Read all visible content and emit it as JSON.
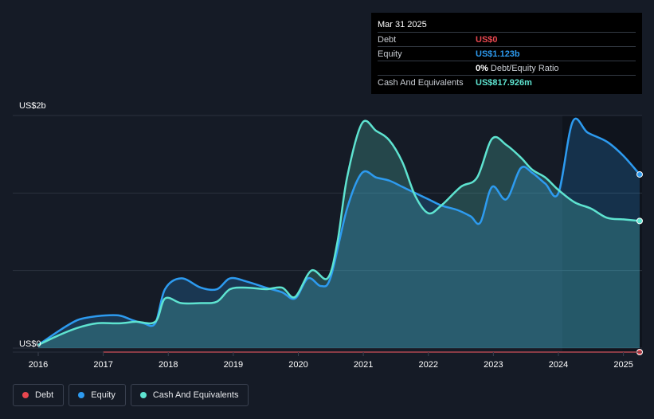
{
  "tooltip": {
    "date": "Mar 31 2025",
    "rows": [
      {
        "label": "Debt",
        "value": "US$0",
        "color": "#e8474f"
      },
      {
        "label": "Equity",
        "value": "US$1.123b",
        "color": "#2d9bf0"
      },
      {
        "label": "",
        "value": "0%",
        "note": "Debt/Equity Ratio",
        "color": "#ffffff"
      },
      {
        "label": "Cash And Equivalents",
        "value": "US$817.926m",
        "color": "#5ee3d0"
      }
    ]
  },
  "legend": [
    {
      "label": "Debt",
      "color": "#e8474f"
    },
    {
      "label": "Equity",
      "color": "#2d9bf0"
    },
    {
      "label": "Cash And Equivalents",
      "color": "#5ee3d0"
    }
  ],
  "chart_data": {
    "type": "area",
    "ylabel_top": "US$2b",
    "ylabel_bottom": "US$0",
    "ylim": [
      0,
      1.5
    ],
    "xlim": [
      2016,
      2025.25
    ],
    "x_tick_labels": [
      "2016",
      "2017",
      "2018",
      "2019",
      "2020",
      "2021",
      "2022",
      "2023",
      "2024",
      "2025"
    ],
    "grid": true,
    "series": [
      {
        "name": "Equity",
        "color": "#2d9bf0",
        "points": [
          [
            2016.0,
            0.02
          ],
          [
            2016.35,
            0.12
          ],
          [
            2016.6,
            0.18
          ],
          [
            2016.8,
            0.2
          ],
          [
            2017.0,
            0.21
          ],
          [
            2017.25,
            0.21
          ],
          [
            2017.45,
            0.18
          ],
          [
            2017.62,
            0.16
          ],
          [
            2017.8,
            0.16
          ],
          [
            2017.95,
            0.38
          ],
          [
            2018.2,
            0.45
          ],
          [
            2018.5,
            0.39
          ],
          [
            2018.75,
            0.38
          ],
          [
            2018.95,
            0.45
          ],
          [
            2019.2,
            0.43
          ],
          [
            2019.5,
            0.39
          ],
          [
            2019.75,
            0.36
          ],
          [
            2019.95,
            0.32
          ],
          [
            2020.15,
            0.45
          ],
          [
            2020.35,
            0.4
          ],
          [
            2020.5,
            0.46
          ],
          [
            2020.75,
            0.9
          ],
          [
            2020.98,
            1.13
          ],
          [
            2021.2,
            1.1
          ],
          [
            2021.4,
            1.08
          ],
          [
            2021.6,
            1.04
          ],
          [
            2021.8,
            1.0
          ],
          [
            2022.0,
            0.96
          ],
          [
            2022.2,
            0.92
          ],
          [
            2022.45,
            0.89
          ],
          [
            2022.65,
            0.85
          ],
          [
            2022.8,
            0.81
          ],
          [
            2022.98,
            1.04
          ],
          [
            2023.2,
            0.96
          ],
          [
            2023.42,
            1.16
          ],
          [
            2023.6,
            1.13
          ],
          [
            2023.8,
            1.06
          ],
          [
            2024.0,
            1.0
          ],
          [
            2024.22,
            1.46
          ],
          [
            2024.45,
            1.39
          ],
          [
            2024.75,
            1.33
          ],
          [
            2025.0,
            1.24
          ],
          [
            2025.25,
            1.12
          ]
        ]
      },
      {
        "name": "Cash And Equivalents",
        "color": "#5ee3d0",
        "points": [
          [
            2016.0,
            0.02
          ],
          [
            2016.3,
            0.08
          ],
          [
            2016.6,
            0.13
          ],
          [
            2016.9,
            0.16
          ],
          [
            2017.25,
            0.16
          ],
          [
            2017.5,
            0.17
          ],
          [
            2017.8,
            0.17
          ],
          [
            2017.95,
            0.32
          ],
          [
            2018.2,
            0.29
          ],
          [
            2018.5,
            0.29
          ],
          [
            2018.75,
            0.3
          ],
          [
            2018.95,
            0.38
          ],
          [
            2019.2,
            0.39
          ],
          [
            2019.5,
            0.38
          ],
          [
            2019.75,
            0.39
          ],
          [
            2019.95,
            0.33
          ],
          [
            2020.2,
            0.5
          ],
          [
            2020.45,
            0.45
          ],
          [
            2020.6,
            0.68
          ],
          [
            2020.75,
            1.1
          ],
          [
            2020.98,
            1.45
          ],
          [
            2021.2,
            1.4
          ],
          [
            2021.4,
            1.34
          ],
          [
            2021.6,
            1.2
          ],
          [
            2021.8,
            0.98
          ],
          [
            2022.0,
            0.87
          ],
          [
            2022.2,
            0.92
          ],
          [
            2022.5,
            1.04
          ],
          [
            2022.75,
            1.1
          ],
          [
            2022.98,
            1.35
          ],
          [
            2023.2,
            1.31
          ],
          [
            2023.42,
            1.23
          ],
          [
            2023.6,
            1.15
          ],
          [
            2023.8,
            1.1
          ],
          [
            2024.0,
            1.02
          ],
          [
            2024.25,
            0.94
          ],
          [
            2024.5,
            0.9
          ],
          [
            2024.75,
            0.84
          ],
          [
            2025.0,
            0.83
          ],
          [
            2025.25,
            0.82
          ]
        ]
      },
      {
        "name": "Debt",
        "color": "#e8474f",
        "points": [
          [
            2017.0,
            0
          ],
          [
            2025.25,
            0
          ]
        ]
      }
    ]
  }
}
